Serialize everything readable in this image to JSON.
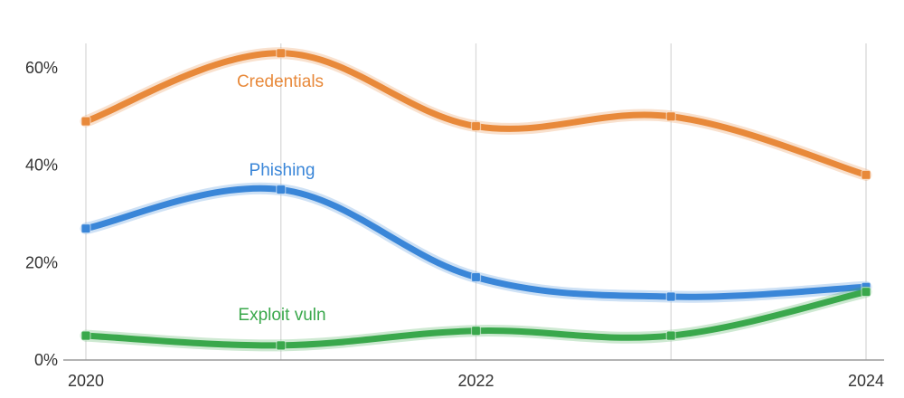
{
  "chart_data": {
    "type": "line",
    "x": [
      2020,
      2021,
      2022,
      2023,
      2024
    ],
    "x_ticks": [
      "2020",
      "",
      "2022",
      "",
      "2024"
    ],
    "y_ticks": [
      "0%",
      "20%",
      "40%",
      "60%"
    ],
    "ylim": [
      0,
      65
    ],
    "grid": "vertical",
    "series": [
      {
        "name": "Credentials",
        "values": [
          49,
          63,
          48,
          50,
          38
        ],
        "color": "#e8893a"
      },
      {
        "name": "Phishing",
        "values": [
          27,
          35,
          17,
          13,
          15
        ],
        "color": "#3a86d8"
      },
      {
        "name": "Exploit vuln",
        "values": [
          5,
          3,
          6,
          5,
          14
        ],
        "color": "#3aa84c"
      }
    ]
  }
}
